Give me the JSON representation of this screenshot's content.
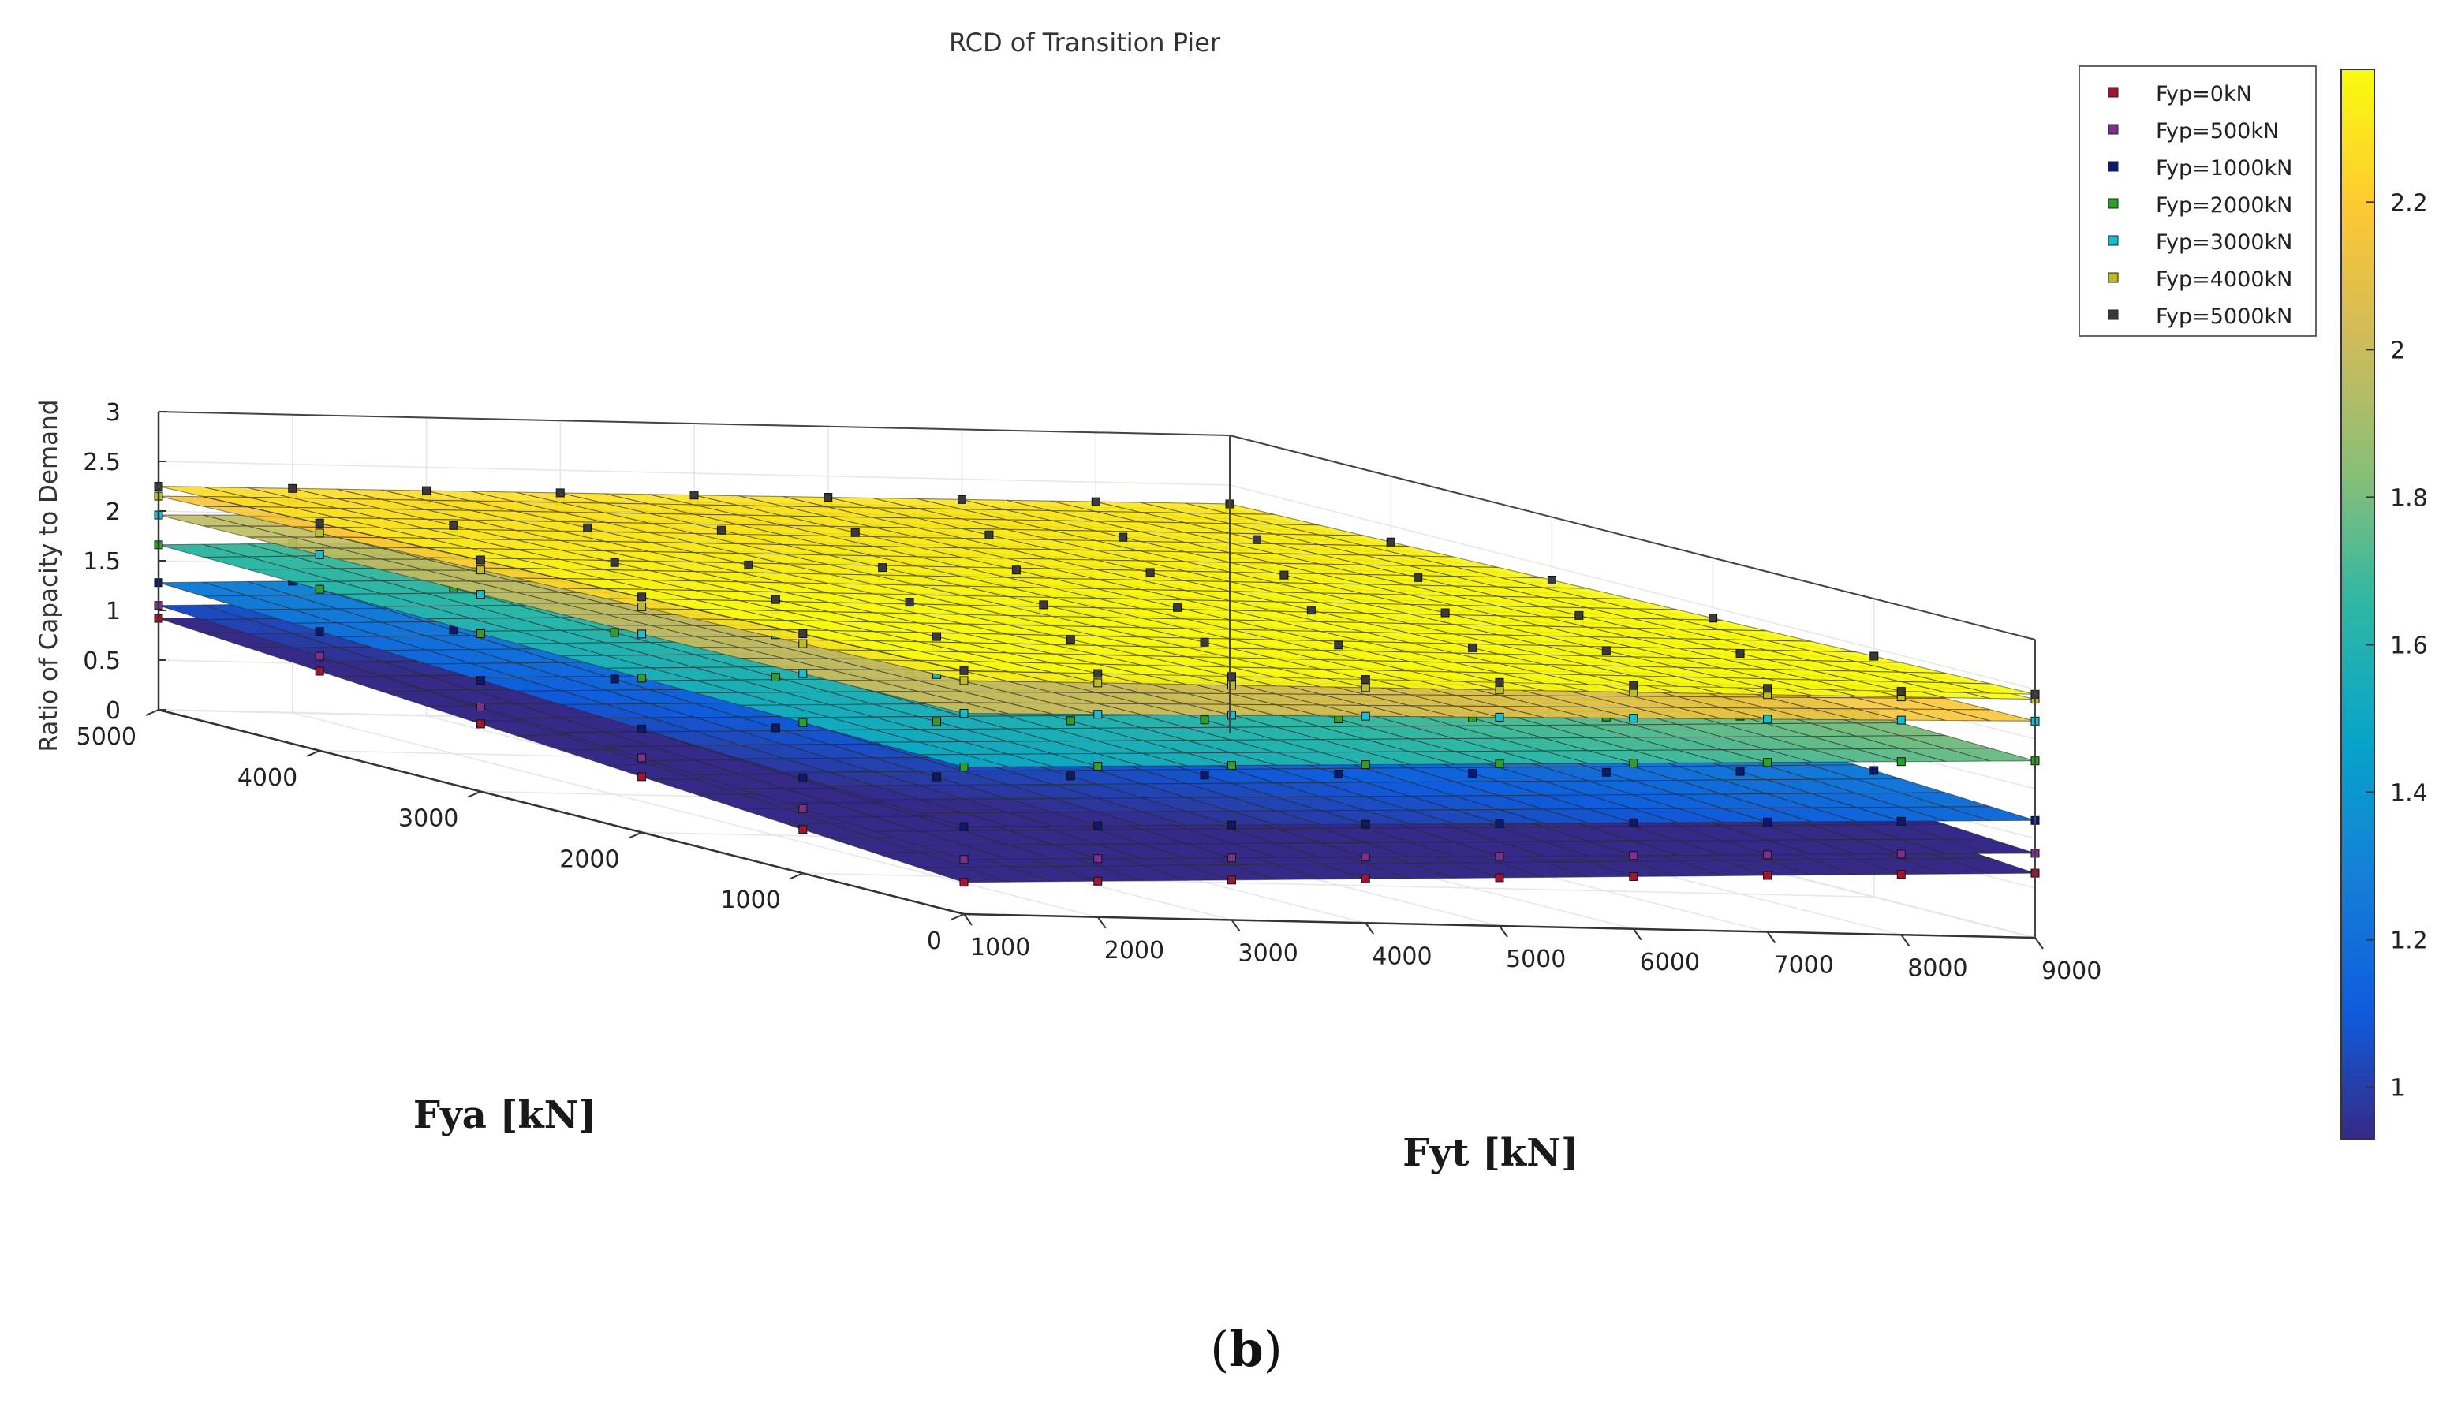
{
  "chart_data": {
    "type": "surface",
    "title": "RCD of Transition Pier",
    "zlabel": "Ratio of Capacity to Demand",
    "xlabel": "Fyt [kN]",
    "ylabel": "Fya [kN]",
    "x_ticks": [
      "1000",
      "2000",
      "3000",
      "4000",
      "5000",
      "6000",
      "7000",
      "8000",
      "9000"
    ],
    "y_ticks": [
      "0",
      "1000",
      "2000",
      "3000",
      "4000",
      "5000"
    ],
    "z_ticks": [
      "0",
      "0.5",
      "1",
      "1.5",
      "2",
      "2.5",
      "3"
    ],
    "xlim": [
      1000,
      9000
    ],
    "ylim": [
      0,
      5000
    ],
    "zlim": [
      0,
      3
    ],
    "colormap": "parula",
    "colorbar": {
      "range": [
        0.93,
        2.38
      ],
      "ticks": [
        "1",
        "1.2",
        "1.4",
        "1.6",
        "1.8",
        "2",
        "2.2"
      ],
      "tick_values": [
        1,
        1.2,
        1.4,
        1.6,
        1.8,
        2.0,
        2.2
      ]
    },
    "legend_position": "top-right",
    "x_grid": [
      1000,
      2000,
      3000,
      4000,
      5000,
      6000,
      7000,
      8000,
      9000
    ],
    "y_grid": [
      0,
      1000,
      2000,
      3000,
      4000,
      5000
    ],
    "series": [
      {
        "name": "Fyp=0kN",
        "marker_color": "#a2142f",
        "z_near": 0.32,
        "z_x9000": 0.65,
        "z_y5000": 0.92
      },
      {
        "name": "Fyp=500kN",
        "marker_color": "#7e2f8e",
        "z_near": 0.55,
        "z_x9000": 0.85,
        "z_y5000": 1.05
      },
      {
        "name": "Fyp=1000kN",
        "marker_color": "#0b1a6e",
        "z_near": 0.88,
        "z_x9000": 1.18,
        "z_y5000": 1.28
      },
      {
        "name": "Fyp=2000kN",
        "marker_color": "#2ca02c",
        "z_near": 1.48,
        "z_x9000": 1.78,
        "z_y5000": 1.66
      },
      {
        "name": "Fyp=3000kN",
        "marker_color": "#17becf",
        "z_near": 2.02,
        "z_x9000": 2.18,
        "z_y5000": 1.96
      },
      {
        "name": "Fyp=4000kN",
        "marker_color": "#bcbd22",
        "z_near": 2.35,
        "z_x9000": 2.4,
        "z_y5000": 2.15
      },
      {
        "name": "Fyp=5000kN",
        "marker_color": "#3a3a3a",
        "z_near": 2.45,
        "z_x9000": 2.45,
        "z_y5000": 2.25
      }
    ]
  },
  "panel_label": {
    "open": "(",
    "letter": "b",
    "close": ")"
  }
}
